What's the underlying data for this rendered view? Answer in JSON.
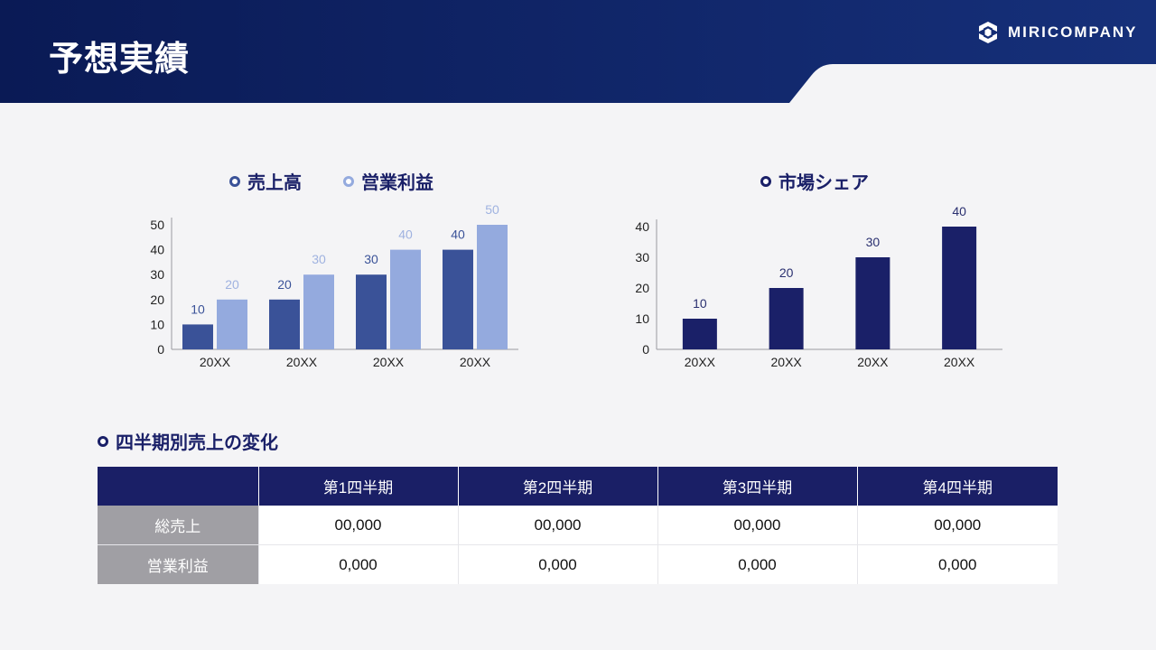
{
  "page": {
    "title": "予想実績"
  },
  "brand": {
    "name": "MIRICOMPANY"
  },
  "colors": {
    "navy": "#1a1f66",
    "header": "#0a1d5c",
    "sales_bar": "#3a5298",
    "profit_bar": "#94aade",
    "share_bar": "#1a2068",
    "row_label_bg": "#a09fa4"
  },
  "legend": {
    "sales": "売上高",
    "profit": "営業利益",
    "share": "市場シェア"
  },
  "chart_data": [
    {
      "type": "bar",
      "categories": [
        "20XX",
        "20XX",
        "20XX",
        "20XX"
      ],
      "series": [
        {
          "name": "売上高",
          "values": [
            10,
            20,
            30,
            40
          ]
        },
        {
          "name": "営業利益",
          "values": [
            20,
            30,
            40,
            50
          ]
        }
      ],
      "ylim": [
        0,
        50
      ],
      "yticks": [
        0,
        10,
        20,
        30,
        40,
        50
      ],
      "legend_position": "top"
    },
    {
      "type": "bar",
      "categories": [
        "20XX",
        "20XX",
        "20XX",
        "20XX"
      ],
      "series": [
        {
          "name": "市場シェア",
          "values": [
            10,
            20,
            30,
            40
          ]
        }
      ],
      "ylim": [
        0,
        40
      ],
      "yticks": [
        0,
        10,
        20,
        30,
        40
      ],
      "legend_position": "top"
    }
  ],
  "quarterly": {
    "title": "四半期別売上の変化",
    "headers": [
      "",
      "第1四半期",
      "第2四半期",
      "第3四半期",
      "第4四半期"
    ],
    "rows": [
      {
        "label": "総売上",
        "values": [
          "00,000",
          "00,000",
          "00,000",
          "00,000"
        ]
      },
      {
        "label": "営業利益",
        "values": [
          "0,000",
          "0,000",
          "0,000",
          "0,000"
        ]
      }
    ]
  }
}
